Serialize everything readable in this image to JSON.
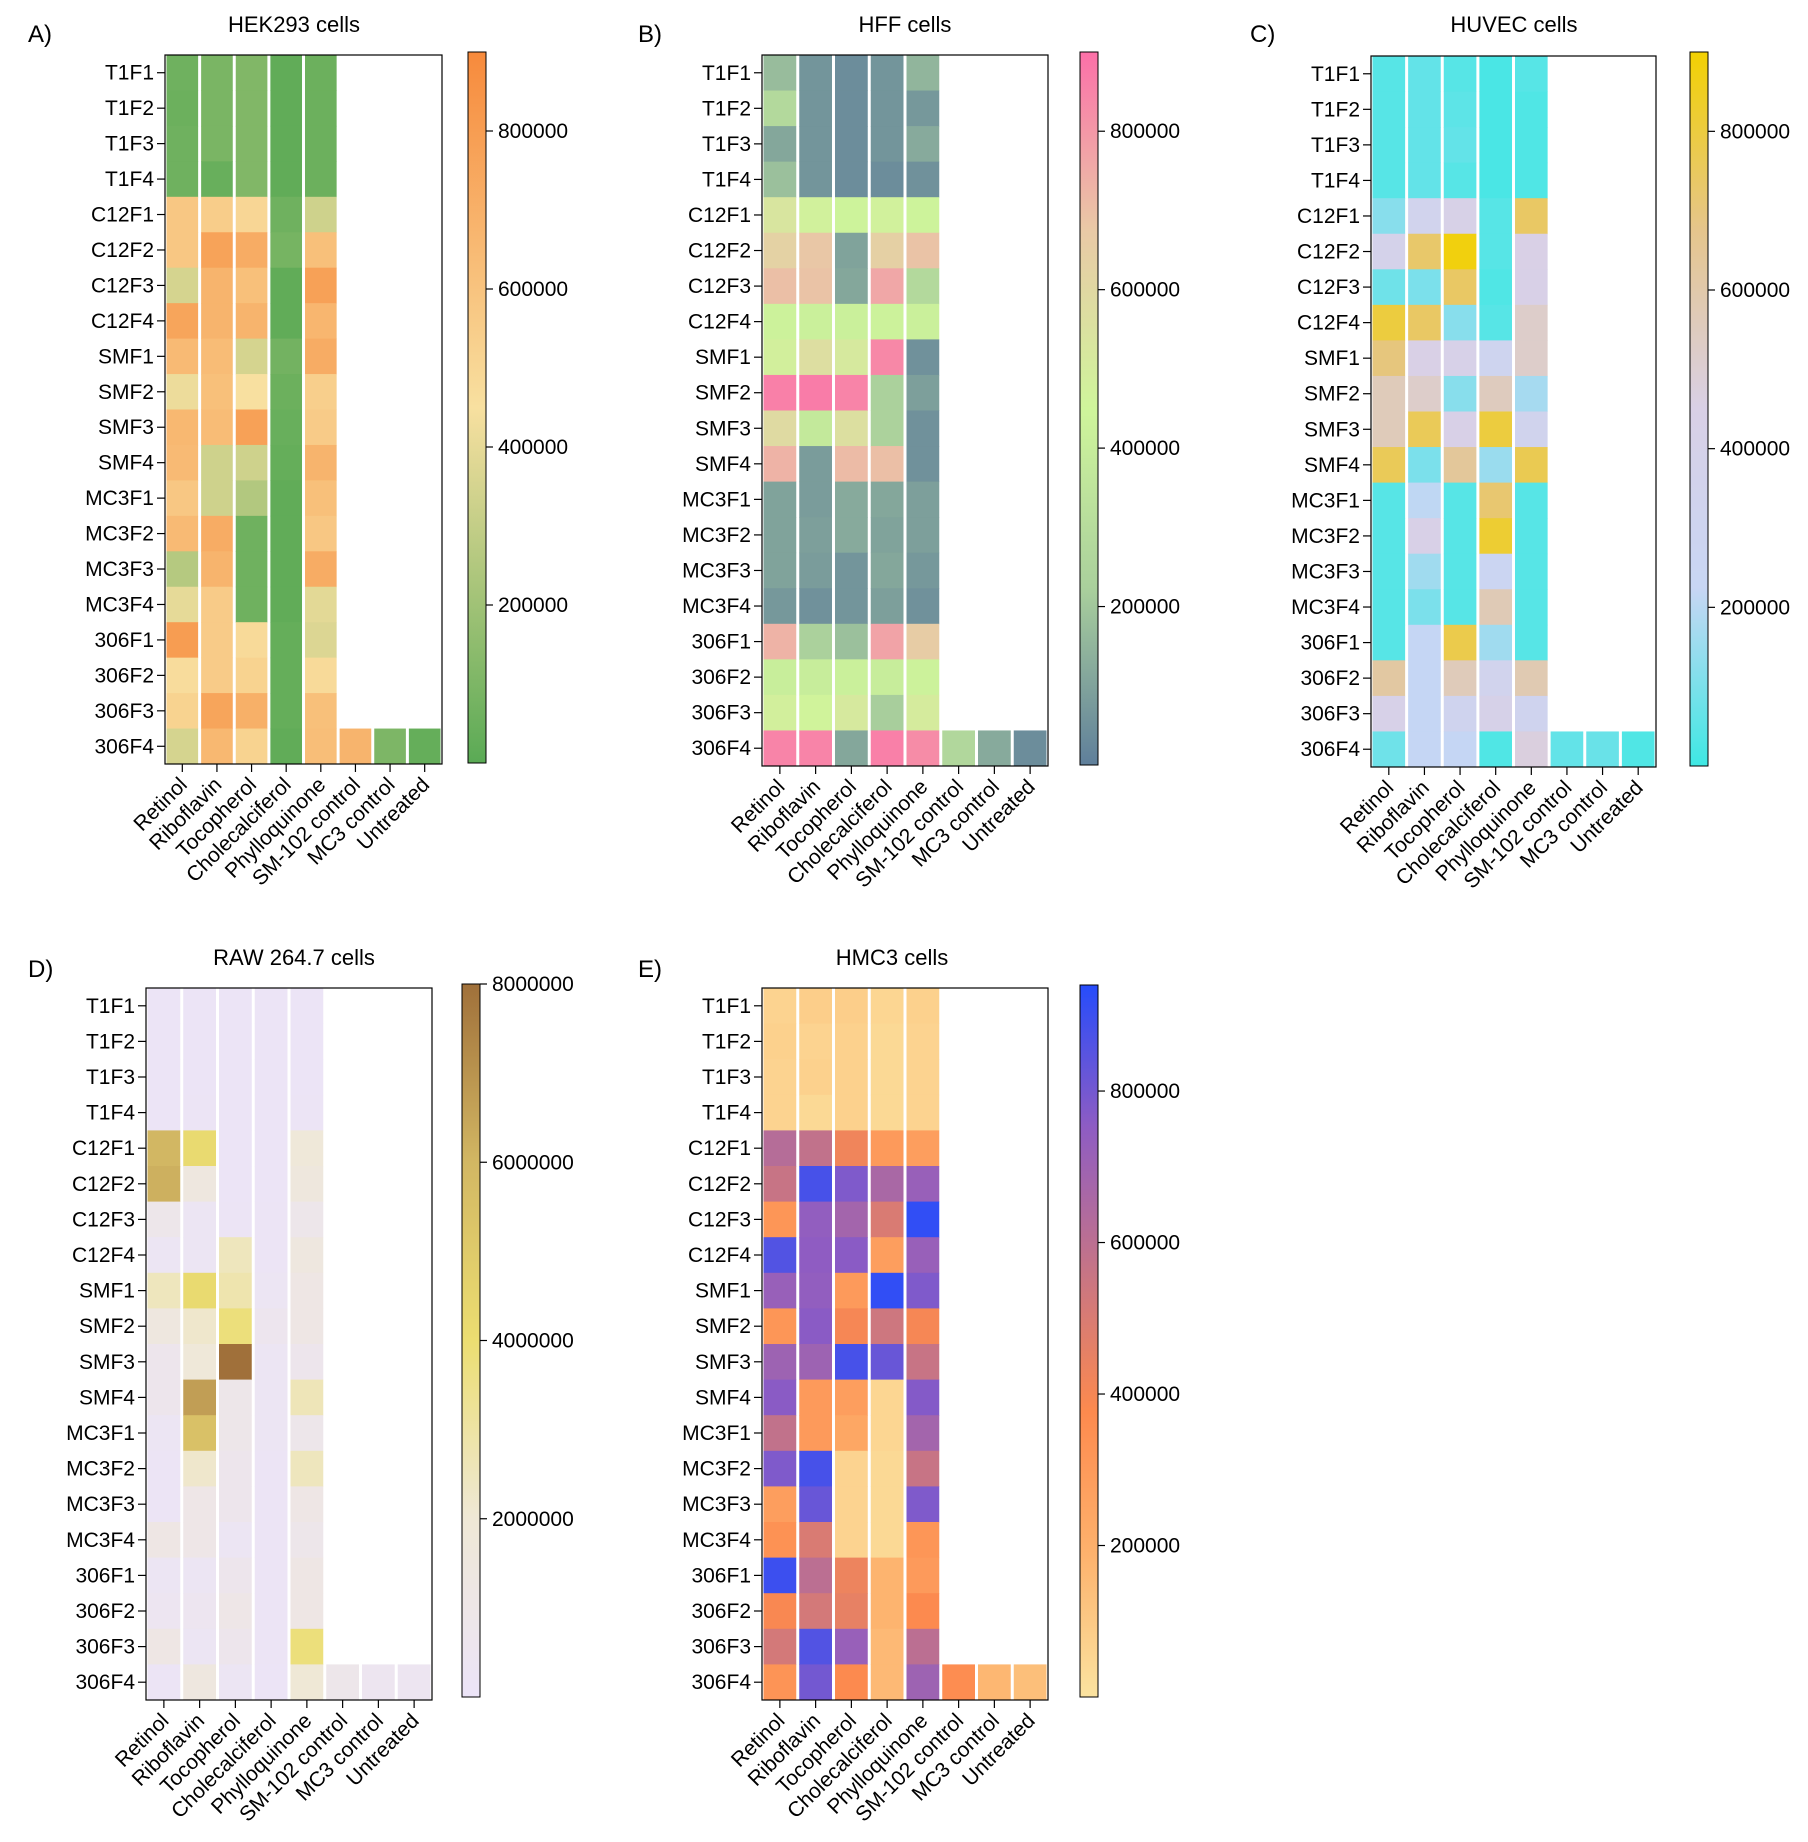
{
  "rows": [
    "T1F1",
    "T1F2",
    "T1F3",
    "T1F4",
    "C12F1",
    "C12F2",
    "C12F3",
    "C12F4",
    "SMF1",
    "SMF2",
    "SMF3",
    "SMF4",
    "MC3F1",
    "MC3F2",
    "MC3F3",
    "MC3F4",
    "306F1",
    "306F2",
    "306F3",
    "306F4"
  ],
  "columns": [
    "Retinol",
    "Riboflavin",
    "Tocopherol",
    "Cholecalciferol",
    "Phylloquinone",
    "SM-102 control",
    "MC3 control",
    "Untreated"
  ],
  "chart_data": [
    {
      "type": "heatmap",
      "panel": "A)",
      "title": "HEK293 cells",
      "colorscale": [
        "#5aaa55",
        "#f8e0a0",
        "#f78a3c"
      ],
      "colorbar": {
        "range": [
          0,
          900000
        ],
        "ticks": [
          200000,
          400000,
          600000,
          800000
        ],
        "tick_labels": [
          "200000",
          "400000",
          "600000",
          "800000"
        ]
      },
      "values": [
        [
          60000,
          90000,
          110000,
          20000,
          50000,
          null,
          null,
          null
        ],
        [
          50000,
          90000,
          110000,
          20000,
          50000,
          null,
          null,
          null
        ],
        [
          60000,
          90000,
          110000,
          20000,
          50000,
          null,
          null,
          null
        ],
        [
          60000,
          40000,
          110000,
          20000,
          50000,
          null,
          null,
          null
        ],
        [
          580000,
          550000,
          500000,
          60000,
          330000,
          null,
          null,
          null
        ],
        [
          580000,
          770000,
          720000,
          80000,
          620000,
          null,
          null,
          null
        ],
        [
          350000,
          680000,
          620000,
          20000,
          780000,
          null,
          null,
          null
        ],
        [
          760000,
          680000,
          680000,
          20000,
          670000,
          null,
          null,
          null
        ],
        [
          650000,
          640000,
          350000,
          70000,
          720000,
          null,
          null,
          null
        ],
        [
          420000,
          620000,
          450000,
          50000,
          540000,
          null,
          null,
          null
        ],
        [
          660000,
          640000,
          780000,
          40000,
          560000,
          null,
          null,
          null
        ],
        [
          650000,
          330000,
          330000,
          30000,
          680000,
          null,
          null,
          null
        ],
        [
          580000,
          330000,
          250000,
          20000,
          620000,
          null,
          null,
          null
        ],
        [
          650000,
          720000,
          60000,
          20000,
          580000,
          null,
          null,
          null
        ],
        [
          260000,
          680000,
          60000,
          20000,
          720000,
          null,
          null,
          null
        ],
        [
          400000,
          560000,
          60000,
          20000,
          390000,
          null,
          null,
          null
        ],
        [
          800000,
          560000,
          480000,
          30000,
          370000,
          null,
          null,
          null
        ],
        [
          470000,
          560000,
          520000,
          30000,
          480000,
          null,
          null,
          null
        ],
        [
          520000,
          760000,
          700000,
          30000,
          620000,
          null,
          null,
          null
        ],
        [
          350000,
          660000,
          520000,
          20000,
          630000,
          680000,
          100000,
          30000
        ]
      ]
    },
    {
      "type": "heatmap",
      "panel": "B)",
      "title": "HFF cells",
      "colorscale": [
        "#5f7f9b",
        "#aad09c",
        "#cff59b",
        "#e9c9a6",
        "#fc70a8"
      ],
      "colorbar": {
        "range": [
          0,
          900000
        ],
        "ticks": [
          200000,
          400000,
          600000,
          800000
        ],
        "tick_labels": [
          "200000",
          "400000",
          "600000",
          "800000"
        ]
      },
      "values": [
        [
          170000,
          60000,
          40000,
          60000,
          150000,
          null,
          null,
          null
        ],
        [
          280000,
          60000,
          40000,
          60000,
          70000,
          null,
          null,
          null
        ],
        [
          110000,
          60000,
          40000,
          60000,
          120000,
          null,
          null,
          null
        ],
        [
          180000,
          60000,
          40000,
          40000,
          50000,
          null,
          null,
          null
        ],
        [
          530000,
          470000,
          440000,
          470000,
          440000,
          null,
          null,
          null
        ],
        [
          630000,
          680000,
          100000,
          640000,
          690000,
          null,
          null,
          null
        ],
        [
          700000,
          690000,
          110000,
          760000,
          280000,
          null,
          null,
          null
        ],
        [
          430000,
          420000,
          420000,
          430000,
          420000,
          null,
          null,
          null
        ],
        [
          480000,
          570000,
          510000,
          840000,
          50000,
          null,
          null,
          null
        ],
        [
          860000,
          870000,
          850000,
          230000,
          90000,
          null,
          null,
          null
        ],
        [
          590000,
          380000,
          560000,
          240000,
          50000,
          null,
          null,
          null
        ],
        [
          730000,
          80000,
          710000,
          700000,
          50000,
          null,
          null,
          null
        ],
        [
          100000,
          80000,
          120000,
          110000,
          90000,
          null,
          null,
          null
        ],
        [
          100000,
          90000,
          120000,
          100000,
          90000,
          null,
          null,
          null
        ],
        [
          100000,
          80000,
          60000,
          110000,
          70000,
          null,
          null,
          null
        ],
        [
          70000,
          50000,
          60000,
          90000,
          50000,
          null,
          null,
          null
        ],
        [
          730000,
          230000,
          180000,
          770000,
          660000,
          null,
          null,
          null
        ],
        [
          410000,
          400000,
          420000,
          400000,
          430000,
          null,
          null,
          null
        ],
        [
          480000,
          460000,
          510000,
          220000,
          500000,
          null,
          null,
          null
        ],
        [
          850000,
          850000,
          110000,
          860000,
          830000,
          270000,
          120000,
          40000
        ]
      ]
    },
    {
      "type": "heatmap",
      "panel": "C)",
      "title": "HUVEC cells",
      "colorscale": [
        "#3ee8e3",
        "#c8d6f4",
        "#d9d0e6",
        "#e5c58c",
        "#f2d102"
      ],
      "colorbar": {
        "range": [
          0,
          900000
        ],
        "ticks": [
          200000,
          400000,
          600000,
          800000
        ],
        "tick_labels": [
          "200000",
          "400000",
          "600000",
          "800000"
        ]
      },
      "values": [
        [
          40000,
          60000,
          40000,
          20000,
          40000,
          null,
          null,
          null
        ],
        [
          40000,
          60000,
          50000,
          20000,
          30000,
          null,
          null,
          null
        ],
        [
          40000,
          60000,
          60000,
          20000,
          30000,
          null,
          null,
          null
        ],
        [
          40000,
          60000,
          40000,
          20000,
          30000,
          null,
          null,
          null
        ],
        [
          120000,
          340000,
          430000,
          40000,
          740000,
          null,
          null,
          null
        ],
        [
          380000,
          730000,
          880000,
          40000,
          450000,
          null,
          null,
          null
        ],
        [
          80000,
          100000,
          740000,
          30000,
          440000,
          null,
          null,
          null
        ],
        [
          800000,
          740000,
          120000,
          40000,
          520000,
          null,
          null,
          null
        ],
        [
          700000,
          450000,
          420000,
          300000,
          520000,
          null,
          null,
          null
        ],
        [
          560000,
          520000,
          120000,
          550000,
          170000,
          null,
          null,
          null
        ],
        [
          560000,
          760000,
          440000,
          800000,
          330000,
          null,
          null,
          null
        ],
        [
          760000,
          100000,
          640000,
          150000,
          770000,
          null,
          null,
          null
        ],
        [
          40000,
          210000,
          40000,
          720000,
          40000,
          null,
          null,
          null
        ],
        [
          40000,
          440000,
          40000,
          820000,
          40000,
          null,
          null,
          null
        ],
        [
          40000,
          160000,
          40000,
          260000,
          40000,
          null,
          null,
          null
        ],
        [
          40000,
          100000,
          40000,
          570000,
          40000,
          null,
          null,
          null
        ],
        [
          40000,
          220000,
          780000,
          160000,
          40000,
          null,
          null,
          null
        ],
        [
          620000,
          220000,
          560000,
          340000,
          580000,
          null,
          null,
          null
        ],
        [
          420000,
          220000,
          320000,
          410000,
          320000,
          null,
          null,
          null
        ],
        [
          80000,
          220000,
          220000,
          30000,
          470000,
          60000,
          70000,
          30000
        ]
      ]
    },
    {
      "type": "heatmap",
      "panel": "D)",
      "title": "RAW 264.7 cells",
      "colorscale": [
        "#ece4f8",
        "#efe8d6",
        "#ecde71",
        "#d2b763",
        "#a0703a"
      ],
      "colorbar": {
        "range": [
          0,
          8000000
        ],
        "ticks": [
          2000000,
          4000000,
          6000000,
          8000000
        ],
        "tick_labels": [
          "2000000",
          "4000000",
          "6000000",
          "8000000"
        ]
      },
      "values": [
        [
          100000,
          100000,
          100000,
          100000,
          100000,
          null,
          null,
          null
        ],
        [
          100000,
          100000,
          100000,
          100000,
          100000,
          null,
          null,
          null
        ],
        [
          100000,
          100000,
          100000,
          100000,
          100000,
          null,
          null,
          null
        ],
        [
          100000,
          200000,
          100000,
          100000,
          200000,
          null,
          null,
          null
        ],
        [
          6000000,
          4200000,
          100000,
          100000,
          1800000,
          null,
          null,
          null
        ],
        [
          6200000,
          1500000,
          100000,
          100000,
          1600000,
          null,
          null,
          null
        ],
        [
          800000,
          300000,
          150000,
          150000,
          800000,
          null,
          null,
          null
        ],
        [
          300000,
          300000,
          2500000,
          150000,
          1500000,
          null,
          null,
          null
        ],
        [
          2500000,
          4200000,
          2800000,
          300000,
          1200000,
          null,
          null,
          null
        ],
        [
          1500000,
          2200000,
          3800000,
          600000,
          1200000,
          null,
          null,
          null
        ],
        [
          700000,
          1800000,
          8000000,
          300000,
          700000,
          null,
          null,
          null
        ],
        [
          700000,
          6700000,
          900000,
          300000,
          2600000,
          null,
          null,
          null
        ],
        [
          300000,
          5500000,
          900000,
          300000,
          800000,
          null,
          null,
          null
        ],
        [
          200000,
          2200000,
          700000,
          200000,
          2500000,
          null,
          null,
          null
        ],
        [
          200000,
          1000000,
          700000,
          200000,
          1100000,
          null,
          null,
          null
        ],
        [
          1200000,
          1000000,
          300000,
          200000,
          800000,
          null,
          null,
          null
        ],
        [
          300000,
          300000,
          700000,
          200000,
          1200000,
          null,
          null,
          null
        ],
        [
          400000,
          500000,
          1000000,
          200000,
          1200000,
          null,
          null,
          null
        ],
        [
          1200000,
          300000,
          700000,
          200000,
          3800000,
          null,
          null,
          null
        ],
        [
          200000,
          1500000,
          300000,
          100000,
          2000000,
          800000,
          500000,
          400000
        ]
      ]
    },
    {
      "type": "heatmap",
      "panel": "E)",
      "title": "HMC3 cells",
      "colorscale": [
        "#fbe3a0",
        "#fdb26d",
        "#fd8a4e",
        "#c67486",
        "#8e5cc3",
        "#264cfb"
      ],
      "colorbar": {
        "range": [
          0,
          940000
        ],
        "ticks": [
          200000,
          400000,
          600000,
          800000
        ],
        "tick_labels": [
          "200000",
          "400000",
          "600000",
          "800000"
        ]
      },
      "values": [
        [
          60000,
          80000,
          80000,
          50000,
          70000,
          null,
          null,
          null
        ],
        [
          70000,
          60000,
          70000,
          40000,
          60000,
          null,
          null,
          null
        ],
        [
          60000,
          70000,
          70000,
          40000,
          60000,
          null,
          null,
          null
        ],
        [
          60000,
          40000,
          70000,
          40000,
          60000,
          null,
          null,
          null
        ],
        [
          620000,
          580000,
          420000,
          300000,
          280000,
          null,
          null,
          null
        ],
        [
          560000,
          880000,
          780000,
          660000,
          720000,
          null,
          null,
          null
        ],
        [
          320000,
          740000,
          680000,
          500000,
          920000,
          null,
          null,
          null
        ],
        [
          860000,
          750000,
          760000,
          280000,
          720000,
          null,
          null,
          null
        ],
        [
          720000,
          740000,
          300000,
          920000,
          780000,
          null,
          null,
          null
        ],
        [
          320000,
          760000,
          400000,
          540000,
          400000,
          null,
          null,
          null
        ],
        [
          700000,
          700000,
          880000,
          820000,
          560000,
          null,
          null,
          null
        ],
        [
          760000,
          300000,
          280000,
          50000,
          770000,
          null,
          null,
          null
        ],
        [
          580000,
          300000,
          240000,
          50000,
          680000,
          null,
          null,
          null
        ],
        [
          780000,
          880000,
          60000,
          40000,
          560000,
          null,
          null,
          null
        ],
        [
          280000,
          820000,
          60000,
          40000,
          780000,
          null,
          null,
          null
        ],
        [
          340000,
          500000,
          60000,
          40000,
          320000,
          null,
          null,
          null
        ],
        [
          900000,
          600000,
          430000,
          180000,
          300000,
          null,
          null,
          null
        ],
        [
          390000,
          520000,
          450000,
          180000,
          380000,
          null,
          null,
          null
        ],
        [
          520000,
          860000,
          720000,
          160000,
          600000,
          null,
          null,
          null
        ],
        [
          330000,
          800000,
          380000,
          160000,
          700000,
          360000,
          170000,
          140000
        ]
      ]
    }
  ]
}
